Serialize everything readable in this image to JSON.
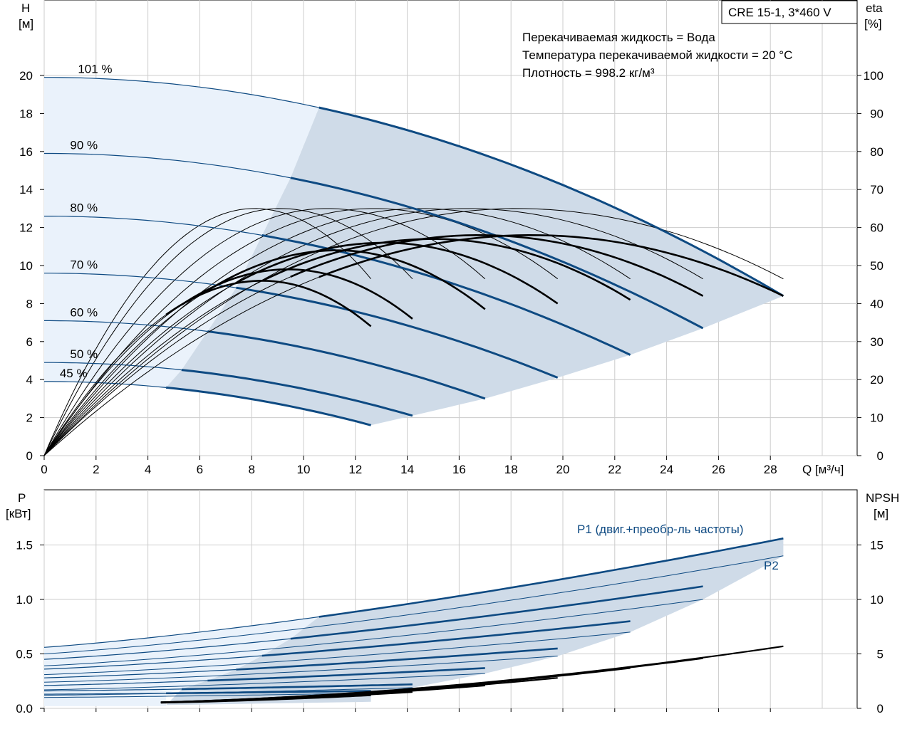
{
  "header_box": {
    "model": "CRE 15-1, 3*460 V"
  },
  "info": {
    "line1": "Перекачиваемая жидкость = Вода",
    "line2": "Температура перекачиваемой жидкости = 20 °C",
    "line3": "Плотность = 998.2 кг/м³"
  },
  "colors": {
    "curve_blue": "#0e4a82",
    "region_dark": "#cfdbe8",
    "region_light": "#eaf2fb"
  },
  "chart_data": [
    {
      "type": "line",
      "name": "head-efficiency",
      "ylabel": [
        "H",
        "[м]"
      ],
      "y2label": [
        "eta",
        "[%]"
      ],
      "xlabel": "Q [м³/ч]",
      "xlim": [
        0,
        30
      ],
      "ylim": [
        0,
        24
      ],
      "y2lim": [
        0,
        120
      ],
      "x_ticks": [
        0,
        2,
        4,
        6,
        8,
        10,
        12,
        14,
        16,
        18,
        20,
        22,
        24,
        26,
        28
      ],
      "y_ticks": [
        0,
        2,
        4,
        6,
        8,
        10,
        12,
        14,
        16,
        18,
        20
      ],
      "y2_ticks": [
        0,
        10,
        20,
        30,
        40,
        50,
        60,
        70,
        80,
        90,
        100
      ],
      "grid": true,
      "speeds": [
        {
          "label": "101 %",
          "h0": 19.9,
          "qmax": 28.5,
          "q_op_start": 10.6,
          "hmax_end": 8.4
        },
        {
          "label": "90 %",
          "h0": 15.9,
          "qmax": 25.4,
          "q_op_start": 9.5,
          "hmax_end": 6.7
        },
        {
          "label": "80 %",
          "h0": 12.6,
          "qmax": 22.6,
          "q_op_start": 8.4,
          "hmax_end": 5.3
        },
        {
          "label": "70 %",
          "h0": 9.6,
          "qmax": 19.8,
          "q_op_start": 7.4,
          "hmax_end": 4.1
        },
        {
          "label": "60 %",
          "h0": 7.1,
          "qmax": 17.0,
          "q_op_start": 6.3,
          "hmax_end": 3.0
        },
        {
          "label": "50 %",
          "h0": 4.9,
          "qmax": 14.2,
          "q_op_start": 5.3,
          "hmax_end": 2.1
        },
        {
          "label": "45 %",
          "h0": 3.9,
          "qmax": 12.6,
          "q_op_start": 4.7,
          "hmax_end": 1.6
        }
      ],
      "eta_curves": [
        {
          "qmax": 28.5,
          "eta_max": 58,
          "q_bep": 18.8,
          "eta_end": 42
        },
        {
          "qmax": 25.4,
          "eta_max": 58,
          "q_bep": 16.8,
          "eta_end": 42
        },
        {
          "qmax": 22.6,
          "eta_max": 57,
          "q_bep": 15.0,
          "eta_end": 41
        },
        {
          "qmax": 19.8,
          "eta_max": 56,
          "q_bep": 13.1,
          "eta_end": 40
        },
        {
          "qmax": 17.0,
          "eta_max": 54,
          "q_bep": 11.3,
          "eta_end": 38.5
        },
        {
          "qmax": 14.2,
          "eta_max": 49,
          "q_bep": 9.4,
          "eta_end": 36
        },
        {
          "qmax": 12.6,
          "eta_max": 46,
          "q_bep": 8.4,
          "eta_end": 34
        }
      ],
      "eta_max_curves": [
        {
          "qmax": 28.5,
          "eta_max": 65,
          "q_bep": 18.2,
          "eta_end": 46.5
        },
        {
          "qmax": 25.4,
          "eta_max": 65,
          "q_bep": 16.3,
          "eta_end": 46.5
        },
        {
          "qmax": 22.6,
          "eta_max": 65,
          "q_bep": 14.5,
          "eta_end": 46.5
        },
        {
          "qmax": 19.8,
          "eta_max": 65,
          "q_bep": 12.7,
          "eta_end": 46.5
        },
        {
          "qmax": 17.0,
          "eta_max": 65,
          "q_bep": 10.9,
          "eta_end": 46.5
        },
        {
          "qmax": 14.2,
          "eta_max": 65,
          "q_bep": 9.1,
          "eta_end": 46.5
        },
        {
          "qmax": 12.6,
          "eta_max": 65,
          "q_bep": 8.1,
          "eta_end": 46.5
        }
      ]
    },
    {
      "type": "line",
      "name": "power-npsh",
      "ylabel": [
        "P",
        "[кВт]"
      ],
      "y2label": [
        "NPSH",
        "[м]"
      ],
      "xlim": [
        0,
        30
      ],
      "ylim": [
        0,
        1.8
      ],
      "y2lim": [
        0,
        18
      ],
      "y_ticks": [
        0.0,
        0.5,
        1.0,
        1.5
      ],
      "y_tick_labels": [
        "0.0",
        "0.5",
        "1.0",
        "1.5"
      ],
      "y2_ticks": [
        0,
        5,
        10,
        15
      ],
      "grid": true,
      "series_labels": {
        "p1": "P1 (двиг.+преобр-ль частоты)",
        "p2": "P2"
      },
      "p1_curves": [
        {
          "qmax": 28.5,
          "p0": 0.56,
          "pend": 1.56,
          "q_op_start": 10.6
        },
        {
          "qmax": 25.4,
          "p0": 0.45,
          "pend": 1.12,
          "q_op_start": 9.5
        },
        {
          "qmax": 22.6,
          "p0": 0.36,
          "pend": 0.8,
          "q_op_start": 8.4
        },
        {
          "qmax": 19.8,
          "p0": 0.28,
          "pend": 0.55,
          "q_op_start": 7.4
        },
        {
          "qmax": 17.0,
          "p0": 0.21,
          "pend": 0.37,
          "q_op_start": 6.3
        },
        {
          "qmax": 14.2,
          "p0": 0.16,
          "pend": 0.22,
          "q_op_start": 5.3
        },
        {
          "qmax": 12.6,
          "p0": 0.13,
          "pend": 0.16,
          "q_op_start": 4.7
        }
      ],
      "p2_curves": [
        {
          "qmax": 28.5,
          "p0": 0.5,
          "pend": 1.4
        },
        {
          "qmax": 25.4,
          "p0": 0.39,
          "pend": 1.0
        },
        {
          "qmax": 22.6,
          "p0": 0.31,
          "pend": 0.7
        },
        {
          "qmax": 19.8,
          "p0": 0.24,
          "pend": 0.48
        },
        {
          "qmax": 17.0,
          "p0": 0.17,
          "pend": 0.32
        },
        {
          "qmax": 14.2,
          "p0": 0.12,
          "pend": 0.19
        },
        {
          "qmax": 12.6,
          "p0": 0.1,
          "pend": 0.14
        }
      ],
      "npsh_curves": [
        {
          "qmax": 28.5,
          "n0": 0.4,
          "nend": 5.7
        },
        {
          "qmax": 25.4,
          "n0": 0.4,
          "nend": 4.6
        },
        {
          "qmax": 22.6,
          "n0": 0.4,
          "nend": 3.7
        },
        {
          "qmax": 19.8,
          "n0": 0.4,
          "nend": 2.8
        },
        {
          "qmax": 17.0,
          "n0": 0.4,
          "nend": 2.1
        },
        {
          "qmax": 14.2,
          "n0": 0.4,
          "nend": 1.5
        },
        {
          "qmax": 12.6,
          "n0": 0.4,
          "nend": 1.2
        }
      ]
    }
  ]
}
